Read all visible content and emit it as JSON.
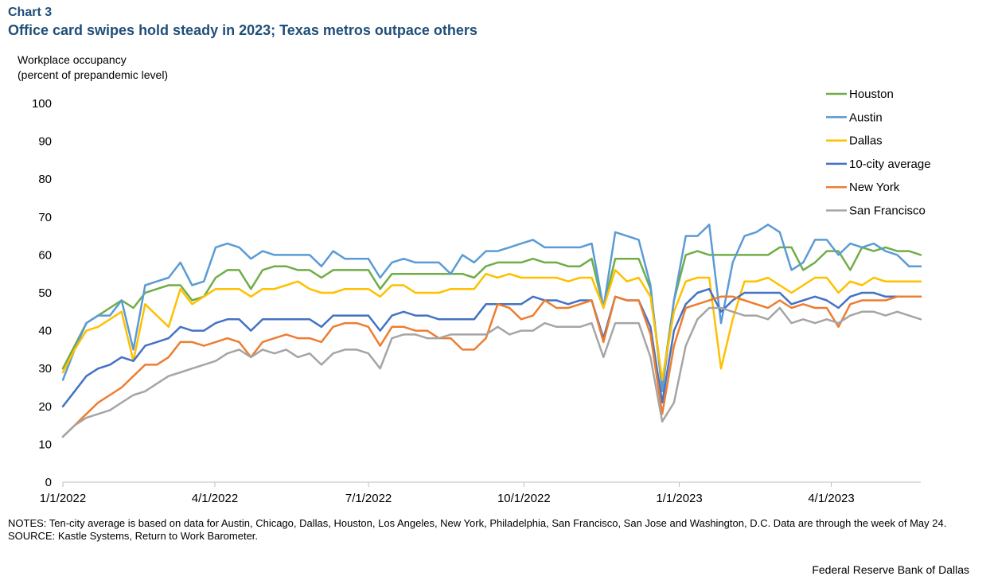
{
  "header": {
    "chart_number": "Chart 3",
    "title": "Office card swipes hold steady in 2023; Texas metros outpace others"
  },
  "axis": {
    "ylabel_line1": "Workplace occupancy",
    "ylabel_line2": "(percent of prepandemic level)"
  },
  "notes": {
    "line1": "NOTES: Ten-city average is based on data for Austin, Chicago, Dallas, Houston, Los Angeles, New York, Philadelphia, San Francisco, San Jose and Washington, D.C. Data are through the week of May 24.",
    "line2": "SOURCE: Kastle Systems, Return to Work Barometer."
  },
  "footer": {
    "text": "Federal Reserve Bank of Dallas"
  },
  "chart_data": {
    "type": "line",
    "ylim": [
      0,
      100
    ],
    "yticks": [
      0,
      10,
      20,
      30,
      40,
      50,
      60,
      70,
      80,
      90,
      100
    ],
    "x_start": "1/1/2022",
    "x_end": "5/24/2023",
    "xticks": [
      "1/1/2022",
      "4/1/2022",
      "7/1/2022",
      "10/1/2022",
      "1/1/2023",
      "4/1/2023"
    ],
    "legend_position": "top-right",
    "grid": false,
    "weeks_count": 74,
    "series": [
      {
        "name": "Houston",
        "color": "#70ad47",
        "values": [
          30,
          36,
          42,
          44,
          46,
          48,
          46,
          50,
          51,
          52,
          52,
          48,
          49,
          54,
          56,
          56,
          51,
          56,
          57,
          57,
          56,
          56,
          54,
          56,
          56,
          56,
          56,
          51,
          55,
          55,
          55,
          55,
          55,
          55,
          55,
          54,
          57,
          58,
          58,
          58,
          59,
          58,
          58,
          57,
          57,
          59,
          46,
          59,
          59,
          59,
          51,
          26,
          48,
          60,
          61,
          60,
          60,
          60,
          60,
          60,
          60,
          62,
          62,
          56,
          58,
          61,
          61,
          56,
          62,
          61,
          62,
          61,
          61,
          60
        ]
      },
      {
        "name": "Austin",
        "color": "#5b9bd5",
        "values": [
          27,
          35,
          42,
          44,
          44,
          48,
          35,
          52,
          53,
          54,
          58,
          52,
          53,
          62,
          63,
          62,
          59,
          61,
          60,
          60,
          60,
          60,
          57,
          61,
          59,
          59,
          59,
          54,
          58,
          59,
          58,
          58,
          58,
          55,
          60,
          58,
          61,
          61,
          62,
          63,
          64,
          62,
          62,
          62,
          62,
          63,
          46,
          66,
          65,
          64,
          52,
          24,
          48,
          65,
          65,
          68,
          42,
          58,
          65,
          66,
          68,
          66,
          56,
          58,
          64,
          64,
          60,
          63,
          62,
          63,
          61,
          60,
          57,
          57
        ]
      },
      {
        "name": "Dallas",
        "color": "#ffc000",
        "values": [
          29,
          35,
          40,
          41,
          43,
          45,
          32,
          47,
          44,
          41,
          51,
          47,
          49,
          51,
          51,
          51,
          49,
          51,
          51,
          52,
          53,
          51,
          50,
          50,
          51,
          51,
          51,
          49,
          52,
          52,
          50,
          50,
          50,
          51,
          51,
          51,
          55,
          54,
          55,
          54,
          54,
          54,
          54,
          53,
          54,
          54,
          46,
          56,
          53,
          54,
          49,
          27,
          45,
          53,
          54,
          54,
          30,
          43,
          53,
          53,
          54,
          52,
          50,
          52,
          54,
          54,
          50,
          53,
          52,
          54,
          53,
          53,
          53,
          53
        ]
      },
      {
        "name": "10-city average",
        "color": "#4472c4",
        "values": [
          20,
          24,
          28,
          30,
          31,
          33,
          32,
          36,
          37,
          38,
          41,
          40,
          40,
          42,
          43,
          43,
          40,
          43,
          43,
          43,
          43,
          43,
          41,
          44,
          44,
          44,
          44,
          40,
          44,
          45,
          44,
          44,
          43,
          43,
          43,
          43,
          47,
          47,
          47,
          47,
          49,
          48,
          48,
          47,
          48,
          48,
          38,
          49,
          48,
          48,
          41,
          21,
          40,
          47,
          50,
          51,
          45,
          48,
          50,
          50,
          50,
          50,
          47,
          48,
          49,
          48,
          46,
          49,
          50,
          50,
          49,
          49,
          49,
          49
        ]
      },
      {
        "name": "New York",
        "color": "#ed7d31",
        "values": [
          12,
          15,
          18,
          21,
          23,
          25,
          28,
          31,
          31,
          33,
          37,
          37,
          36,
          37,
          38,
          37,
          33,
          37,
          38,
          39,
          38,
          38,
          37,
          41,
          42,
          42,
          41,
          36,
          41,
          41,
          40,
          40,
          38,
          38,
          35,
          35,
          38,
          47,
          46,
          43,
          44,
          48,
          46,
          46,
          47,
          48,
          37,
          49,
          48,
          48,
          39,
          18,
          36,
          46,
          47,
          48,
          49,
          49,
          48,
          47,
          46,
          48,
          46,
          47,
          46,
          46,
          41,
          47,
          48,
          48,
          48,
          49,
          49,
          49
        ]
      },
      {
        "name": "San Francisco",
        "color": "#a5a5a5",
        "values": [
          12,
          15,
          17,
          18,
          19,
          21,
          23,
          24,
          26,
          28,
          29,
          30,
          31,
          32,
          34,
          35,
          33,
          35,
          34,
          35,
          33,
          34,
          31,
          34,
          35,
          35,
          34,
          30,
          38,
          39,
          39,
          38,
          38,
          39,
          39,
          39,
          39,
          41,
          39,
          40,
          40,
          42,
          41,
          41,
          41,
          42,
          33,
          42,
          42,
          42,
          33,
          16,
          21,
          36,
          43,
          46,
          46,
          45,
          44,
          44,
          43,
          46,
          42,
          43,
          42,
          43,
          42,
          44,
          45,
          45,
          44,
          45,
          44,
          43
        ]
      }
    ]
  }
}
